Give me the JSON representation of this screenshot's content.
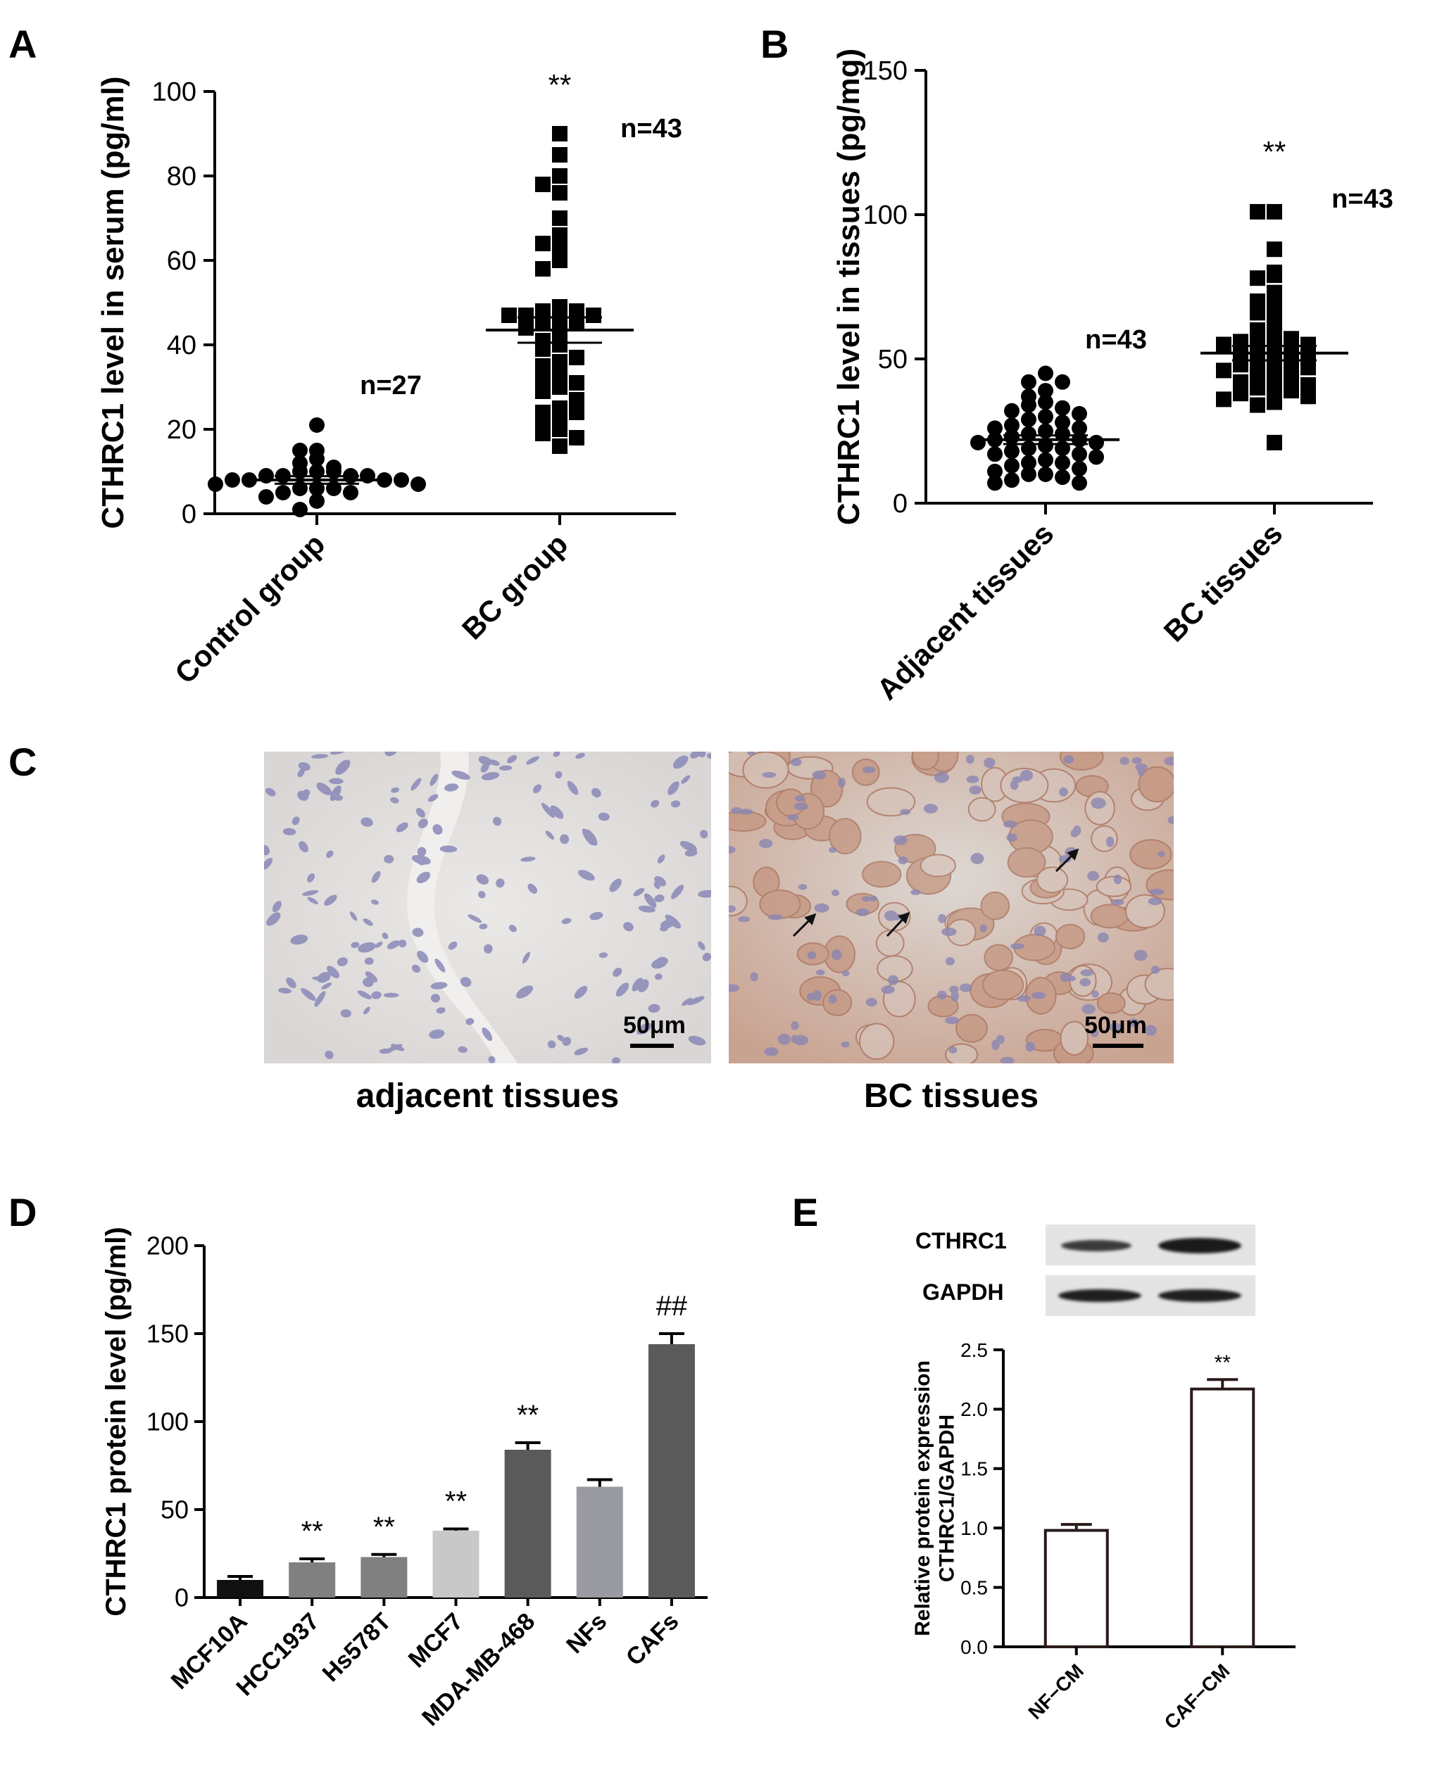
{
  "chart_data": [
    {
      "panel": "A",
      "type": "scatter",
      "ylabel": "CTHRC1 level in serum (pg/ml)",
      "ylim": [
        0,
        100
      ],
      "yticks": [
        0,
        20,
        40,
        60,
        80,
        100
      ],
      "categories": [
        "Control group",
        "BC group"
      ],
      "series": [
        {
          "category": "Control group",
          "marker": "circle",
          "n_label": "n=27",
          "mean": 8,
          "sem": 0.9,
          "values": [
            21,
            15,
            15,
            13,
            12,
            11,
            10,
            10,
            10,
            9,
            9,
            9,
            9,
            8,
            8,
            8,
            8,
            7,
            7,
            6,
            6,
            6,
            5,
            5,
            4,
            3,
            1
          ],
          "annotation": ""
        },
        {
          "category": "BC group",
          "marker": "square",
          "n_label": "n=43",
          "mean": 43.5,
          "sem": 3,
          "values": [
            90,
            85,
            80,
            78,
            76,
            70,
            66,
            64,
            63,
            60,
            58,
            49,
            48,
            48,
            47,
            47,
            47,
            46,
            45,
            45,
            44,
            43,
            41,
            40,
            39,
            37,
            36,
            35,
            33,
            32,
            31,
            30,
            29,
            27,
            25,
            24,
            24,
            23,
            22,
            20,
            19,
            18,
            16
          ],
          "annotation": "**"
        }
      ]
    },
    {
      "panel": "B",
      "type": "scatter",
      "ylabel": "CTHRC1 level in tissues (pg/mg)",
      "ylim": [
        0,
        150
      ],
      "yticks": [
        0,
        50,
        100,
        150
      ],
      "categories": [
        "Adjacent tissues",
        "BC tissues"
      ],
      "series": [
        {
          "category": "Adjacent tissues",
          "marker": "circle",
          "n_label": "n=43",
          "mean": 22,
          "sem": 1.5,
          "values": [
            45,
            42,
            42,
            39,
            37,
            35,
            34,
            33,
            32,
            31,
            30,
            29,
            28,
            27,
            26,
            26,
            25,
            24,
            24,
            23,
            22,
            22,
            21,
            21,
            20,
            19,
            19,
            18,
            17,
            17,
            16,
            15,
            14,
            14,
            13,
            12,
            11,
            10,
            10,
            9,
            8,
            7,
            7
          ],
          "annotation": ""
        },
        {
          "category": "BC tissues",
          "marker": "square",
          "n_label": "n=43",
          "mean": 52,
          "sem": 2.5,
          "values": [
            101,
            101,
            88,
            80,
            79,
            78,
            73,
            70,
            68,
            66,
            63,
            60,
            59,
            58,
            57,
            56,
            55,
            55,
            54,
            53,
            53,
            52,
            51,
            50,
            49,
            48,
            48,
            47,
            46,
            45,
            44,
            43,
            42,
            41,
            40,
            40,
            39,
            38,
            37,
            36,
            35,
            34,
            21
          ],
          "annotation": "**"
        }
      ]
    },
    {
      "panel": "D",
      "type": "bar",
      "ylabel": "CTHRC1 protein level (pg/ml)",
      "ylim": [
        0,
        200
      ],
      "yticks": [
        0,
        50,
        100,
        150,
        200
      ],
      "categories": [
        "MCF10A",
        "HCC1937",
        "Hs578T",
        "MCF7",
        "MDA-MB-468",
        "NFs",
        "CAFs"
      ],
      "values": [
        10,
        20,
        23,
        38,
        84,
        63,
        144
      ],
      "errors": [
        2,
        2,
        1.5,
        1,
        4,
        4,
        6
      ],
      "annotations": [
        "",
        "**",
        "**",
        "**",
        "**",
        "",
        "##"
      ],
      "colors": [
        "#111111",
        "#808080",
        "#808080",
        "#c8c8c8",
        "#5a5a5a",
        "#9a9aa2",
        "#5a5a5a"
      ]
    },
    {
      "panel": "E",
      "type": "bar",
      "ylabel": "Relative protein expression CTHRC1/GAPDH",
      "ylabel_lines": [
        "Relative protein expression",
        "CTHRC1/GAPDH"
      ],
      "ylim": [
        0,
        2.5
      ],
      "yticks": [
        "0.0",
        "0.5",
        "1.0",
        "1.5",
        "2.0",
        "2.5"
      ],
      "categories": [
        "NF−CM",
        "CAF−CM"
      ],
      "values": [
        0.98,
        2.17
      ],
      "errors": [
        0.05,
        0.08
      ],
      "annotations": [
        "",
        "**"
      ]
    }
  ],
  "panels": {
    "A": {
      "letter": "A"
    },
    "B": {
      "letter": "B"
    },
    "C": {
      "letter": "C",
      "images": [
        {
          "caption": "adjacent tissues",
          "scale": "50μm"
        },
        {
          "caption": "BC tissues",
          "scale": "50μm"
        }
      ]
    },
    "D": {
      "letter": "D"
    },
    "E": {
      "letter": "E",
      "blot_labels": [
        "CTHRC1",
        "GAPDH"
      ]
    }
  }
}
